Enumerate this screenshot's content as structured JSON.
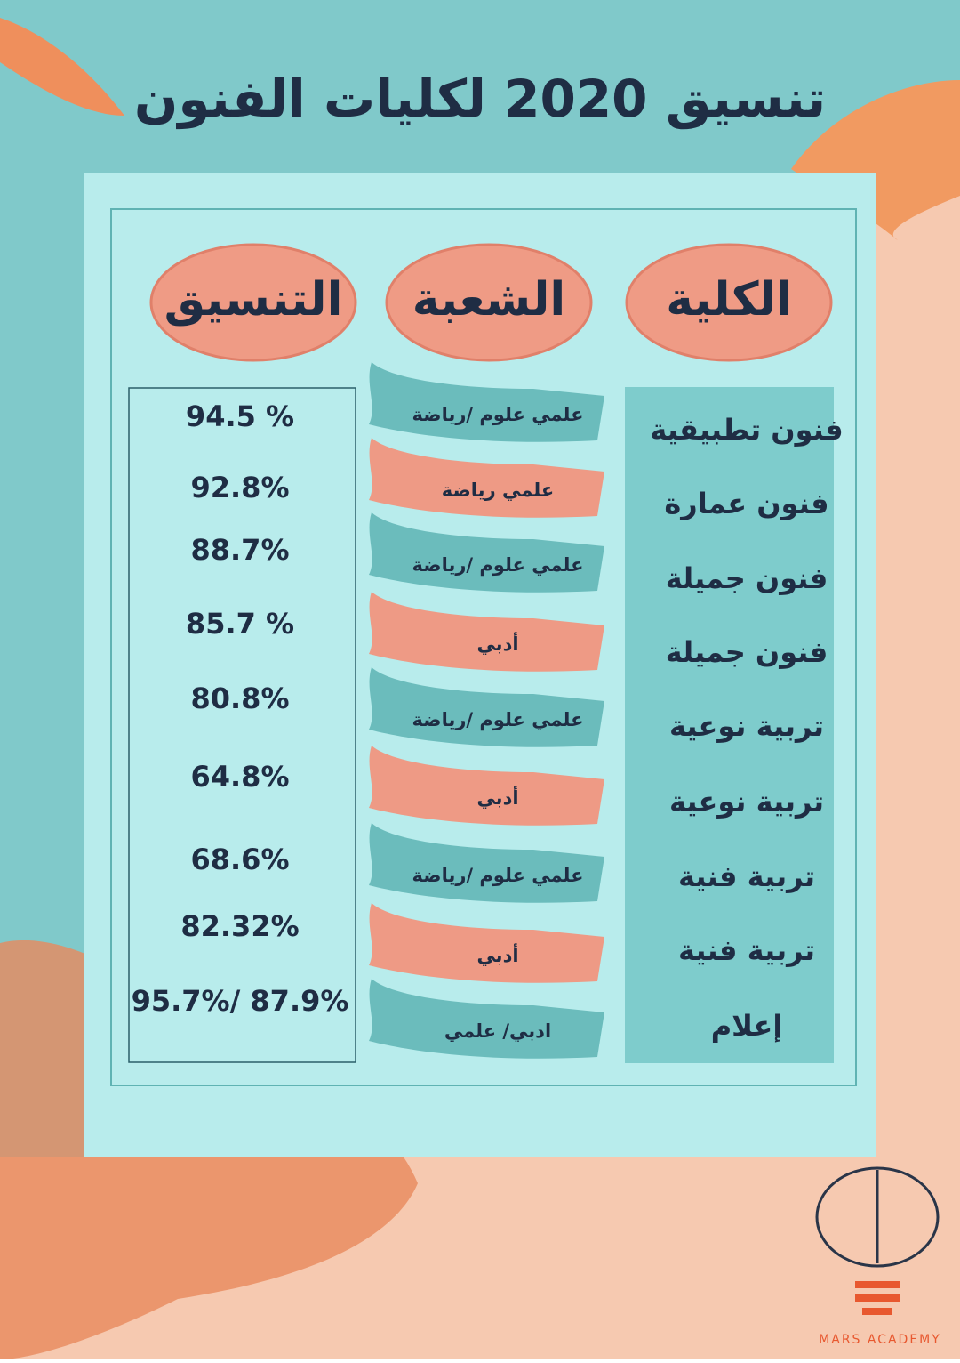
{
  "header": {
    "title": "تنسيق 2020 لكليات الفنون"
  },
  "table": {
    "headers": [
      "الكلية",
      "الشعبة",
      "التنسيق"
    ],
    "rows": [
      [
        "فنون تطبيقية",
        "علمي علوم /رياضة",
        "94.5 %"
      ],
      [
        "فنون عمارة",
        "علمي رياضة",
        "92.8%"
      ],
      [
        "فنون جميلة",
        "علمي علوم /رياضة",
        "88.7%"
      ],
      [
        "فنون جميلة",
        "أدبي",
        "85.7 %"
      ],
      [
        "تربية نوعية",
        "علمي علوم /رياضة",
        "80.8%"
      ],
      [
        "تربية نوعية",
        "أدبي",
        "64.8%"
      ],
      [
        "تربية فنية",
        "علمي علوم /رياضة",
        "68.6%"
      ],
      [
        "تربية فنية",
        "أدبي",
        "82.32%"
      ],
      [
        "إعلام",
        "ادبي/ علمي",
        "95.7%/ 87.9%"
      ]
    ]
  },
  "footer": {
    "brand": "MARS ACADEMY"
  }
}
